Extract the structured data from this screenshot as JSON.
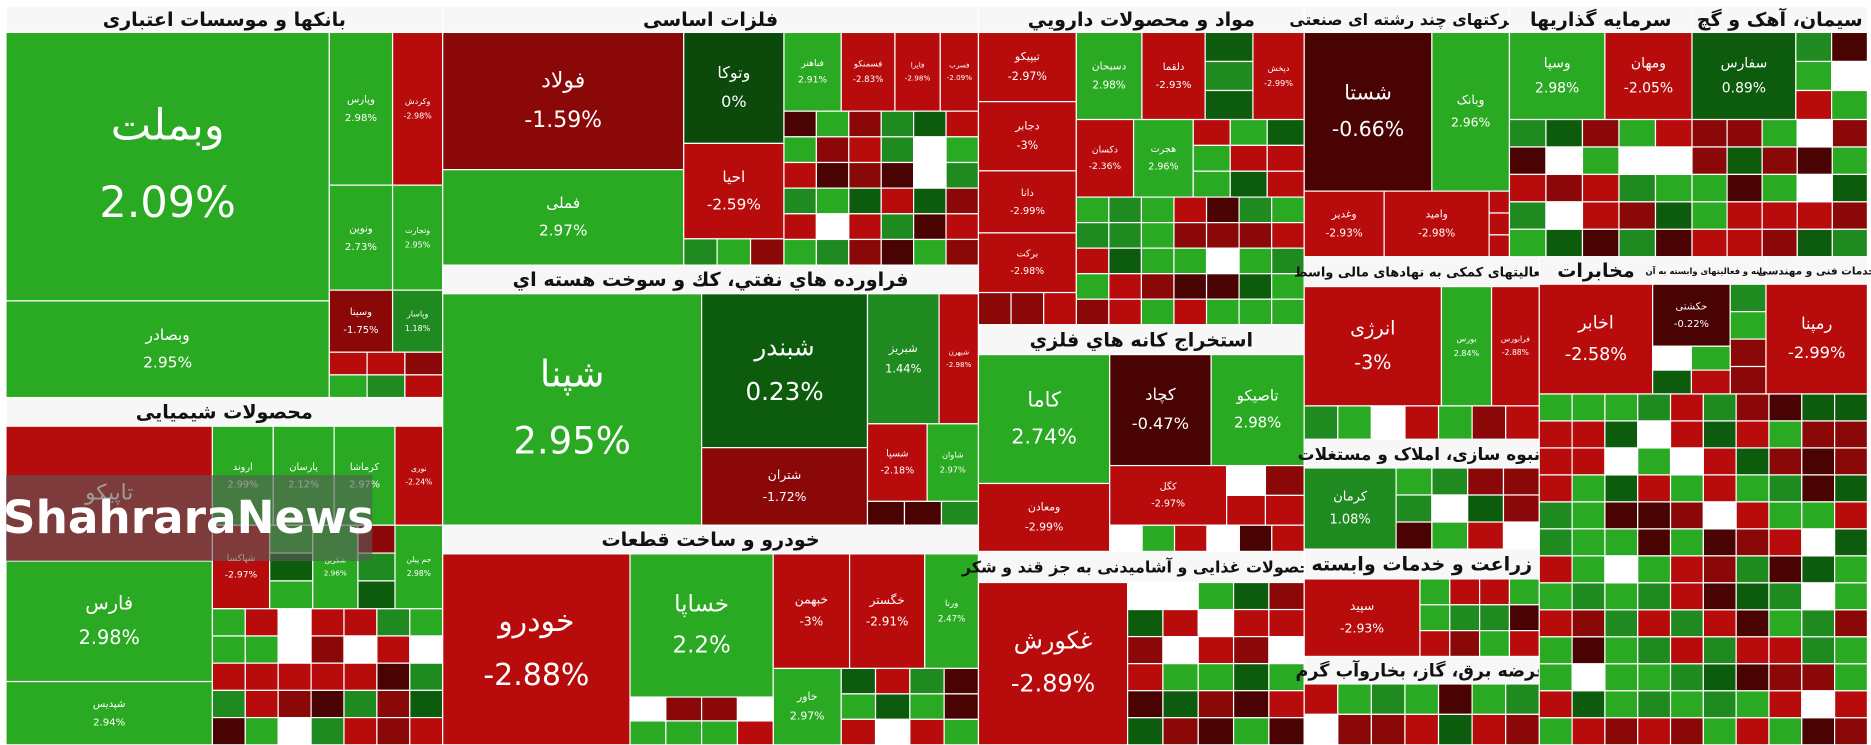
{
  "watermark": "ShahraraNews",
  "sectors": [
    {
      "title": "بانکها و موسسات اعتباری",
      "tiles": [
        {
          "name": "وبملت",
          "change": 2.09,
          "change_label": "2.09%"
        },
        {
          "name": "وبصادر",
          "change": 2.95,
          "change_label": "2.95%"
        },
        {
          "name": "وپارس",
          "change": 2.98,
          "change_label": "2.98%"
        },
        {
          "name": "وکردش",
          "change": -2.98,
          "change_label": "-2.98%"
        },
        {
          "name": "ونوین",
          "change": 2.73,
          "change_label": "2.73%"
        },
        {
          "name": "وتجارت",
          "change": 2.95,
          "change_label": "2.95%"
        },
        {
          "name": "وسینا",
          "change": -1.75,
          "change_label": "-1.75%"
        },
        {
          "name": "وپاسار",
          "change": 1.18,
          "change_label": "1.18%"
        }
      ]
    },
    {
      "title": "محصولات شیمیایی",
      "tiles": [
        {
          "name": "تاپیکو",
          "change": null
        },
        {
          "name": "فارس",
          "change": 2.98,
          "change_label": "2.98%"
        },
        {
          "name": "شپدیس",
          "change": 2.94,
          "change_label": "2.94%"
        },
        {
          "name": "اروند",
          "change": 2.99,
          "change_label": "2.99%"
        },
        {
          "name": "پارسان",
          "change": 2.12,
          "change_label": "2.12%"
        },
        {
          "name": "کرماشا",
          "change": 2.97,
          "change_label": "2.97%"
        },
        {
          "name": "نوری",
          "change": -2.24,
          "change_label": "-2.24%"
        },
        {
          "name": "شپاکسا",
          "change": -2.97,
          "change_label": "-2.97%"
        },
        {
          "name": "شکربن",
          "change": 2.96,
          "change_label": "2.96%"
        },
        {
          "name": "جم پیلن",
          "change": 2.98,
          "change_label": "2.98%"
        }
      ]
    },
    {
      "title": "فلزات اساسی",
      "tiles": [
        {
          "name": "فولاد",
          "change": -1.59,
          "change_label": "-1.59%"
        },
        {
          "name": "فملی",
          "change": 2.97,
          "change_label": "2.97%"
        },
        {
          "name": "وتوکا",
          "change": 0,
          "change_label": "0%"
        },
        {
          "name": "احیا",
          "change": -2.59,
          "change_label": "-2.59%"
        },
        {
          "name": "فباهنر",
          "change": 2.91,
          "change_label": "2.91%"
        },
        {
          "name": "فسمنکو",
          "change": -2.83,
          "change_label": "-2.83%"
        },
        {
          "name": "فایرا",
          "change": -2.98,
          "change_label": "-2.98%"
        },
        {
          "name": "فسرب",
          "change": -2.09,
          "change_label": "-2.09%"
        }
      ]
    },
    {
      "title": "فراورده هاي نفتي، كك و سوخت هسته اي",
      "tiles": [
        {
          "name": "شپنا",
          "change": 2.95,
          "change_label": "2.95%"
        },
        {
          "name": "شبندر",
          "change": 0.23,
          "change_label": "0.23%"
        },
        {
          "name": "شتران",
          "change": -1.72,
          "change_label": "-1.72%"
        },
        {
          "name": "شبریز",
          "change": 1.44,
          "change_label": "1.44%"
        },
        {
          "name": "شبهرن",
          "change": -2.98,
          "change_label": "-2.98%"
        },
        {
          "name": "شسپا",
          "change": -2.18,
          "change_label": "-2.18%"
        },
        {
          "name": "شاوان",
          "change": 2.97,
          "change_label": "2.97%"
        }
      ]
    },
    {
      "title": "خودرو و ساخت قطعات",
      "tiles": [
        {
          "name": "خودرو",
          "change": -2.88,
          "change_label": "-2.88%"
        },
        {
          "name": "خساپا",
          "change": 2.2,
          "change_label": "2.2%"
        },
        {
          "name": "خبهمن",
          "change": -3,
          "change_label": "-3%"
        },
        {
          "name": "خگستر",
          "change": -2.91,
          "change_label": "-2.91%"
        },
        {
          "name": "ورنا",
          "change": 2.47,
          "change_label": "2.47%"
        },
        {
          "name": "خاور",
          "change": 2.97,
          "change_label": "2.97%"
        }
      ]
    },
    {
      "title": "مواد و محصولات دارويي",
      "tiles": [
        {
          "name": "تیپیکو",
          "change": -2.97,
          "change_label": "-2.97%"
        },
        {
          "name": "دجابر",
          "change": -3,
          "change_label": "-3%"
        },
        {
          "name": "دانا",
          "change": -2.99,
          "change_label": "-2.99%"
        },
        {
          "name": "برکت",
          "change": -2.98,
          "change_label": "-2.98%"
        },
        {
          "name": "دسبحان",
          "change": 2.98,
          "change_label": "2.98%"
        },
        {
          "name": "دلقما",
          "change": -2.93,
          "change_label": "-2.93%"
        },
        {
          "name": "دپخش",
          "change": -2.99,
          "change_label": "-2.99%"
        },
        {
          "name": "دکسان",
          "change": -2.36,
          "change_label": "-2.36%"
        },
        {
          "name": "هجرت",
          "change": 2.96,
          "change_label": "2.96%"
        }
      ]
    },
    {
      "title": "استخراج کانه هاي فلزي",
      "tiles": [
        {
          "name": "کاما",
          "change": 2.74,
          "change_label": "2.74%"
        },
        {
          "name": "کچاد",
          "change": -0.47,
          "change_label": "-0.47%"
        },
        {
          "name": "تاصیکو",
          "change": 2.98,
          "change_label": "2.98%"
        },
        {
          "name": "ومعادن",
          "change": -2.99,
          "change_label": "-2.99%"
        },
        {
          "name": "کگل",
          "change": -2.97,
          "change_label": "-2.97%"
        }
      ]
    },
    {
      "title": "محصولات غذایی و آشامیدنی به جز قند و شکر",
      "tiles": [
        {
          "name": "غکورش",
          "change": -2.89,
          "change_label": "-2.89%"
        }
      ]
    },
    {
      "title": "شرکتهای چند رشته ای صنعتی",
      "tiles": [
        {
          "name": "شستا",
          "change": -0.66,
          "change_label": "-0.66%"
        },
        {
          "name": "وبانک",
          "change": 2.96,
          "change_label": "2.96%"
        },
        {
          "name": "وغدیر",
          "change": -2.93,
          "change_label": "-2.93%"
        },
        {
          "name": "وامید",
          "change": -2.98,
          "change_label": "-2.98%"
        }
      ]
    },
    {
      "title": "فعالیتهای کمکی به نهادهای مالی واسط",
      "tiles": [
        {
          "name": "انرژی",
          "change": -3,
          "change_label": "-3%"
        },
        {
          "name": "بورس",
          "change": 2.84,
          "change_label": "2.84%"
        },
        {
          "name": "فرابورس",
          "change": -2.88,
          "change_label": "-2.88%"
        }
      ]
    },
    {
      "title": "انبوه سازی، املاک و مستغلات",
      "tiles": [
        {
          "name": "کرمان",
          "change": 1.08,
          "change_label": "1.08%"
        }
      ]
    },
    {
      "title": "زراعت و خدمات وابسته",
      "tiles": [
        {
          "name": "سپید",
          "change": -2.93,
          "change_label": "-2.93%"
        }
      ]
    },
    {
      "title": "عرضه برق، گاز، بخاروآب گرم",
      "tiles": []
    },
    {
      "title": "سرمایه گذاریها",
      "tiles": [
        {
          "name": "وسپا",
          "change": 2.98,
          "change_label": "2.98%"
        },
        {
          "name": "ومهان",
          "change": -2.05,
          "change_label": "-2.05%"
        }
      ]
    },
    {
      "title": "سیمان، آهک و گچ",
      "tiles": [
        {
          "name": "سفارس",
          "change": 0.89,
          "change_label": "0.89%"
        }
      ]
    },
    {
      "title": "مخابرات",
      "tiles": [
        {
          "name": "اخابر",
          "change": -2.58,
          "change_label": "-2.58%"
        }
      ]
    },
    {
      "title": "رایانه و فعالیتهای وابسته به آن",
      "tiles": [
        {
          "name": "حکشتی",
          "change": -0.22,
          "change_label": "-0.22%"
        }
      ]
    },
    {
      "title": "خدمات فنی و مهندسی",
      "tiles": [
        {
          "name": "رمپنا",
          "change": -2.99,
          "change_label": "-2.99%"
        }
      ]
    }
  ]
}
